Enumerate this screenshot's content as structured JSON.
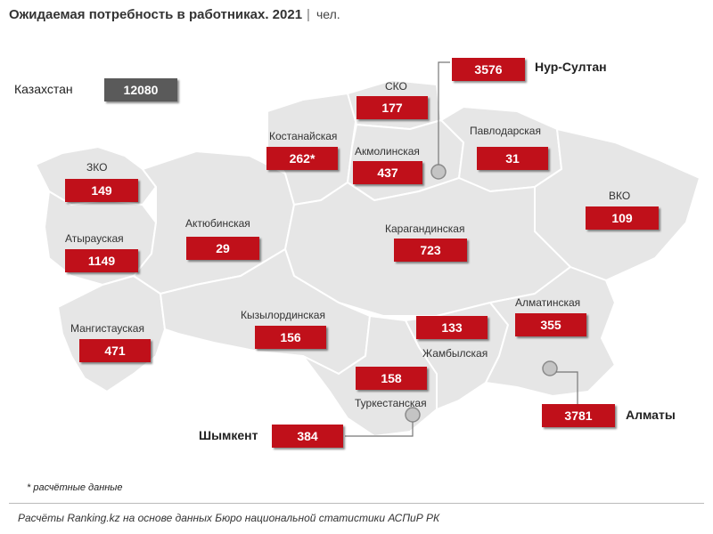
{
  "title": {
    "main": "Ожидаемая потребность в работниках. 2021",
    "separator": "|",
    "unit": "чел."
  },
  "total": {
    "label": "Казахстан",
    "value": "12080"
  },
  "regions": [
    {
      "id": "sko",
      "name": "СКО",
      "value": "177"
    },
    {
      "id": "kostanay",
      "name": "Костанайская",
      "value": "262*"
    },
    {
      "id": "akmola",
      "name": "Акмолинская",
      "value": "437"
    },
    {
      "id": "pavlodar",
      "name": "Павлодарская",
      "value": "31"
    },
    {
      "id": "zko",
      "name": "ЗКО",
      "value": "149"
    },
    {
      "id": "atyrau",
      "name": "Атырауская",
      "value": "1149"
    },
    {
      "id": "aktobe",
      "name": "Актюбинская",
      "value": "29"
    },
    {
      "id": "karaganda",
      "name": "Карагандинская",
      "value": "723"
    },
    {
      "id": "vko",
      "name": "ВКО",
      "value": "109"
    },
    {
      "id": "mangystau",
      "name": "Мангистауская",
      "value": "471"
    },
    {
      "id": "kyzylorda",
      "name": "Кызылординская",
      "value": "156"
    },
    {
      "id": "zhambyl",
      "name": "Жамбылская",
      "value": "133"
    },
    {
      "id": "almaty_reg",
      "name": "Алматинская",
      "value": "355"
    },
    {
      "id": "turkestan",
      "name": "Туркестанская",
      "value": "158"
    }
  ],
  "cities": [
    {
      "id": "nursultan",
      "name": "Нур-Султан",
      "value": "3576"
    },
    {
      "id": "almaty",
      "name": "Алматы",
      "value": "3781"
    },
    {
      "id": "shymkent",
      "name": "Шымкент",
      "value": "384"
    }
  ],
  "footnote": "* расчётные данные",
  "source": "Расчёты Ranking.kz на основе данных Бюро национальной статистики АСПиР РК",
  "colors": {
    "value_box": "#c0101a",
    "total_box": "#5a5a5a",
    "map_fill": "#e6e6e6",
    "border": "#ffffff"
  }
}
